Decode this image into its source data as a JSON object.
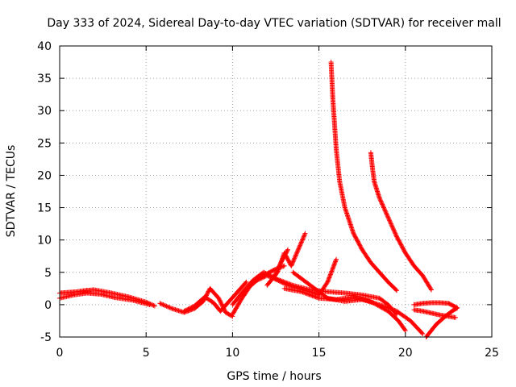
{
  "chart_data": {
    "type": "scatter",
    "title": "Day 333 of 2024, Sidereal Day-to-day VTEC variation (SDTVAR) for receiver mall",
    "xlabel": "GPS time / hours",
    "ylabel": "SDTVAR / TECUs",
    "xlim": [
      0,
      25
    ],
    "ylim": [
      -5,
      40
    ],
    "xticks": [
      "0",
      "5",
      "10",
      "15",
      "20",
      "25"
    ],
    "yticks": [
      "-5",
      "0",
      "5",
      "10",
      "15",
      "20",
      "25",
      "30",
      "35",
      "40"
    ],
    "grid": true,
    "marker": "+",
    "color": "#ff0000",
    "series": [
      {
        "name": "s1",
        "x": [
          0.0,
          0.5,
          1.0,
          1.5,
          2.0,
          3.0,
          4.0,
          5.0,
          5.5
        ],
        "y": [
          1.8,
          1.9,
          2.0,
          2.2,
          2.3,
          1.8,
          1.2,
          0.4,
          -0.2
        ]
      },
      {
        "name": "s2",
        "x": [
          0.0,
          0.8,
          1.6,
          2.4,
          3.2,
          4.2,
          5.2
        ],
        "y": [
          1.0,
          1.5,
          1.8,
          1.6,
          1.1,
          0.7,
          0.0
        ]
      },
      {
        "name": "s3",
        "x": [
          5.8,
          6.5,
          7.2,
          7.8,
          8.3,
          8.7,
          9.2,
          9.6,
          10.0
        ],
        "y": [
          0.2,
          -0.6,
          -1.2,
          -0.6,
          0.5,
          2.5,
          1.0,
          -1.2,
          -1.8
        ]
      },
      {
        "name": "s4",
        "x": [
          7.2,
          7.8,
          8.4,
          8.9,
          9.3,
          9.8,
          10.3,
          10.8
        ],
        "y": [
          -1.0,
          -0.2,
          1.2,
          0.3,
          -1.0,
          0.5,
          2.0,
          3.5
        ]
      },
      {
        "name": "s5",
        "x": [
          10.0,
          10.5,
          11.0,
          11.5,
          12.0,
          12.5,
          13.0
        ],
        "y": [
          -1.5,
          0.8,
          2.8,
          4.0,
          4.8,
          5.5,
          6.0
        ]
      },
      {
        "name": "s6",
        "x": [
          10.0,
          10.6,
          11.2,
          11.8,
          12.4,
          12.8,
          13.2
        ],
        "y": [
          0.0,
          2.0,
          3.8,
          5.0,
          4.2,
          6.5,
          8.5
        ]
      },
      {
        "name": "s7",
        "x": [
          12.0,
          12.6,
          13.0,
          13.4,
          13.8,
          14.2
        ],
        "y": [
          3.0,
          5.0,
          8.0,
          6.0,
          8.5,
          11.0
        ]
      },
      {
        "name": "s8",
        "x": [
          11.2,
          12.0,
          12.6,
          13.2,
          13.8,
          14.5,
          15.0,
          15.5,
          16.0
        ],
        "y": [
          3.5,
          4.5,
          3.8,
          3.0,
          2.5,
          2.0,
          1.5,
          3.5,
          7.0
        ]
      },
      {
        "name": "s9",
        "x": [
          12.5,
          13.5,
          14.5,
          15.5,
          16.5,
          17.5,
          18.5,
          19.0,
          19.5
        ],
        "y": [
          4.0,
          3.0,
          2.3,
          2.0,
          1.8,
          1.5,
          1.0,
          0.0,
          -1.5
        ]
      },
      {
        "name": "s10",
        "x": [
          13.0,
          14.0,
          15.0,
          16.0,
          17.0,
          18.0,
          19.0,
          19.6,
          20.0
        ],
        "y": [
          2.5,
          2.0,
          1.0,
          0.8,
          1.2,
          0.5,
          -1.0,
          -2.5,
          -4.0
        ]
      },
      {
        "name": "s11",
        "x": [
          13.5,
          14.5,
          15.5,
          16.5,
          17.5,
          18.5,
          19.5,
          20.3,
          21.0
        ],
        "y": [
          5.0,
          3.0,
          1.0,
          0.5,
          0.8,
          0.0,
          -1.0,
          -2.5,
          -4.5
        ]
      },
      {
        "name": "s12",
        "x": [
          15.7,
          15.8,
          15.9,
          16.0,
          16.2,
          16.5,
          17.0,
          17.5,
          18.0,
          18.5,
          19.0,
          19.5
        ],
        "y": [
          37.5,
          32.0,
          28.0,
          24.0,
          19.0,
          15.0,
          11.0,
          8.5,
          6.5,
          5.0,
          3.5,
          2.2
        ]
      },
      {
        "name": "s13",
        "x": [
          18.0,
          18.1,
          18.2,
          18.5,
          19.0,
          19.5,
          20.0,
          20.5,
          21.0,
          21.5
        ],
        "y": [
          23.5,
          21.0,
          19.0,
          16.5,
          13.5,
          10.5,
          8.0,
          6.0,
          4.5,
          2.3
        ]
      },
      {
        "name": "s14",
        "x": [
          20.5,
          21.0,
          21.5,
          22.0,
          22.5,
          23.0
        ],
        "y": [
          0.0,
          0.2,
          0.3,
          0.3,
          0.2,
          -0.5
        ]
      },
      {
        "name": "s15",
        "x": [
          20.5,
          21.0,
          21.5,
          22.0,
          22.5,
          22.9
        ],
        "y": [
          -0.8,
          -1.0,
          -1.3,
          -1.6,
          -1.8,
          -2.0
        ]
      },
      {
        "name": "s16",
        "x": [
          21.2,
          21.5,
          21.8,
          22.1,
          22.4,
          22.7,
          23.0
        ],
        "y": [
          -5.0,
          -4.0,
          -3.0,
          -2.3,
          -1.6,
          -1.0,
          -0.5
        ]
      }
    ]
  }
}
